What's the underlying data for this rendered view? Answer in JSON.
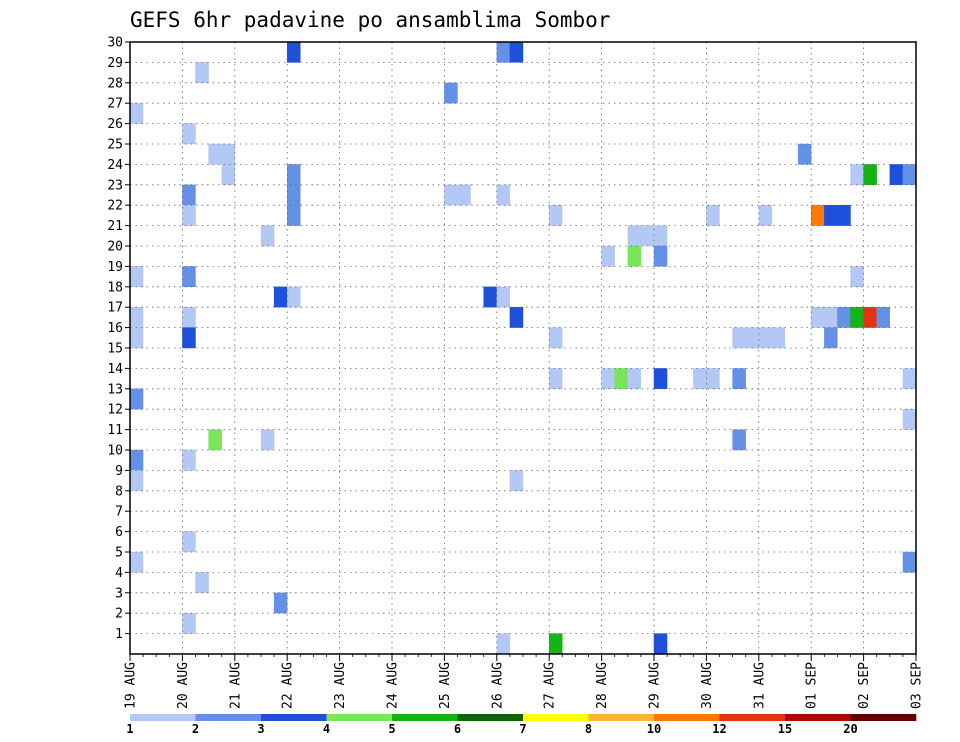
{
  "chart_data": {
    "type": "heatmap",
    "title": "GEFS 6hr padavine po ansamblima Sombor",
    "y_ticks": [
      "1",
      "2",
      "3",
      "4",
      "5",
      "6",
      "7",
      "8",
      "9",
      "10",
      "11",
      "12",
      "13",
      "14",
      "15",
      "16",
      "17",
      "18",
      "19",
      "20",
      "21",
      "22",
      "23",
      "24",
      "25",
      "26",
      "27",
      "28",
      "29",
      "30"
    ],
    "x_ticks": [
      "19 AUG",
      "20 AUG",
      "21 AUG",
      "22 AUG",
      "23 AUG",
      "24 AUG",
      "25 AUG",
      "26 AUG",
      "27 AUG",
      "28 AUG",
      "29 AUG",
      "30 AUG",
      "31 AUG",
      "01 SEP",
      "02 SEP",
      "03 SEP"
    ],
    "xlim": [
      0,
      60
    ],
    "ylim": [
      0,
      30
    ],
    "grid": true,
    "x_unit": "6h step (4 per day)",
    "colorbar": {
      "labels": [
        "1",
        "2",
        "3",
        "4",
        "5",
        "6",
        "7",
        "8",
        "10",
        "12",
        "15",
        "20"
      ],
      "colors": [
        "#b4c8f5",
        "#6490e6",
        "#1e50dc",
        "#78e65a",
        "#14b414",
        "#0a640a",
        "#ffff00",
        "#ffb432",
        "#ff7800",
        "#e63214",
        "#aa0a0a",
        "#640000"
      ]
    },
    "cells": [
      [
        12,
        30,
        3
      ],
      [
        28,
        30,
        2
      ],
      [
        29,
        30,
        3
      ],
      [
        5,
        29,
        1
      ],
      [
        24,
        28,
        2
      ],
      [
        0,
        27,
        1
      ],
      [
        4,
        26,
        1
      ],
      [
        6,
        25,
        1
      ],
      [
        7,
        25,
        1
      ],
      [
        51,
        25,
        2
      ],
      [
        7,
        24,
        1
      ],
      [
        12,
        24,
        2
      ],
      [
        55,
        24,
        1
      ],
      [
        56,
        24,
        5
      ],
      [
        58,
        24,
        3
      ],
      [
        59,
        24,
        2
      ],
      [
        4,
        23,
        2
      ],
      [
        12,
        23,
        2
      ],
      [
        24,
        23,
        1
      ],
      [
        25,
        23,
        1
      ],
      [
        28,
        23,
        1
      ],
      [
        4,
        22,
        1
      ],
      [
        12,
        22,
        2
      ],
      [
        32,
        22,
        1
      ],
      [
        44,
        22,
        1
      ],
      [
        48,
        22,
        1
      ],
      [
        52,
        22,
        9
      ],
      [
        53,
        22,
        3
      ],
      [
        54,
        22,
        3
      ],
      [
        10,
        21,
        1
      ],
      [
        38,
        21,
        1
      ],
      [
        39,
        21,
        1
      ],
      [
        40,
        21,
        1
      ],
      [
        36,
        20,
        1
      ],
      [
        38,
        20,
        4
      ],
      [
        40,
        20,
        2
      ],
      [
        0,
        19,
        1
      ],
      [
        4,
        19,
        2
      ],
      [
        55,
        19,
        1
      ],
      [
        11,
        18,
        3
      ],
      [
        12,
        18,
        1
      ],
      [
        27,
        18,
        3
      ],
      [
        28,
        18,
        1
      ],
      [
        0,
        17,
        1
      ],
      [
        4,
        17,
        1
      ],
      [
        29,
        17,
        3
      ],
      [
        52,
        17,
        1
      ],
      [
        53,
        17,
        1
      ],
      [
        54,
        17,
        2
      ],
      [
        55,
        17,
        5
      ],
      [
        56,
        17,
        10
      ],
      [
        57,
        17,
        2
      ],
      [
        0,
        16,
        1
      ],
      [
        4,
        16,
        3
      ],
      [
        32,
        16,
        1
      ],
      [
        46,
        16,
        1
      ],
      [
        47,
        16,
        1
      ],
      [
        48,
        16,
        1
      ],
      [
        49,
        16,
        1
      ],
      [
        53,
        16,
        2
      ],
      [
        32,
        14,
        1
      ],
      [
        36,
        14,
        1
      ],
      [
        37,
        14,
        4
      ],
      [
        38,
        14,
        1
      ],
      [
        40,
        14,
        3
      ],
      [
        43,
        14,
        1
      ],
      [
        44,
        14,
        1
      ],
      [
        46,
        14,
        2
      ],
      [
        59,
        14,
        1
      ],
      [
        0,
        13,
        2
      ],
      [
        59,
        12,
        1
      ],
      [
        6,
        11,
        4
      ],
      [
        10,
        11,
        1
      ],
      [
        46,
        11,
        2
      ],
      [
        0,
        10,
        2
      ],
      [
        4,
        10,
        1
      ],
      [
        0,
        9,
        1
      ],
      [
        29,
        9,
        1
      ],
      [
        4,
        6,
        1
      ],
      [
        0,
        5,
        1
      ],
      [
        59,
        5,
        2
      ],
      [
        5,
        4,
        1
      ],
      [
        11,
        3,
        2
      ],
      [
        4,
        2,
        1
      ],
      [
        28,
        1,
        1
      ],
      [
        32,
        1,
        5
      ],
      [
        40,
        1,
        3
      ]
    ]
  }
}
